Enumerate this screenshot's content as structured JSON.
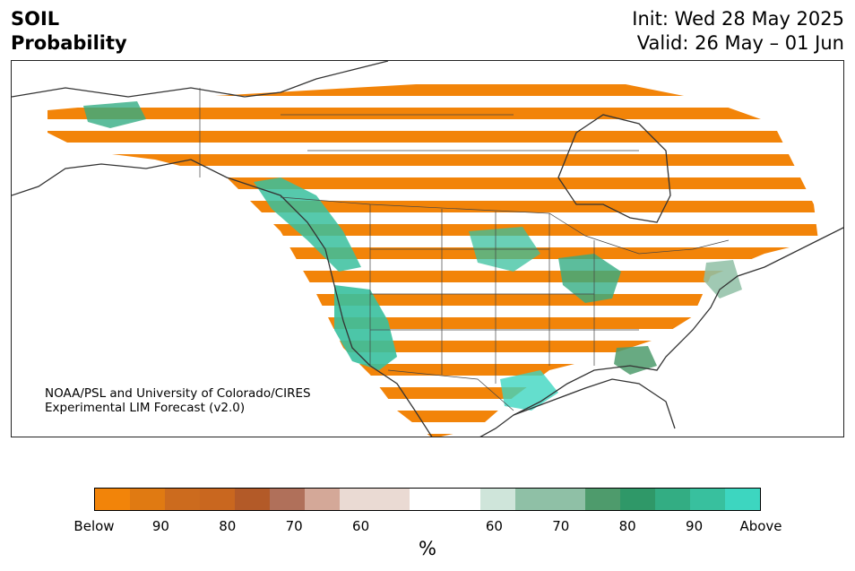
{
  "header": {
    "title_line1": "SOIL",
    "title_line2": "Probability",
    "init": "Init: Wed 28 May 2025",
    "valid": "Valid: 26 May – 01 Jun"
  },
  "map": {
    "credit_line1": "NOAA/PSL and University of Colorado/CIRES",
    "credit_line2": "Experimental LIM Forecast (v2.0)"
  },
  "colorbar": {
    "below_colors": [
      "#f28409",
      "#e07a12",
      "#cc6b1e",
      "#c9671f",
      "#b35a28",
      "#b0705a",
      "#d4a898",
      "#eadad3"
    ],
    "neutral_color": "#ffffff",
    "above_colors": [
      "#cfe5da",
      "#8fc0a6",
      "#8fc0a6",
      "#4e9b6c",
      "#2f9868",
      "#33ad83",
      "#38c09e",
      "#3dd6c0"
    ],
    "tick_labels": [
      "Below",
      "90",
      "80",
      "70",
      "60",
      "60",
      "70",
      "80",
      "90",
      "Above"
    ],
    "label": "%"
  }
}
